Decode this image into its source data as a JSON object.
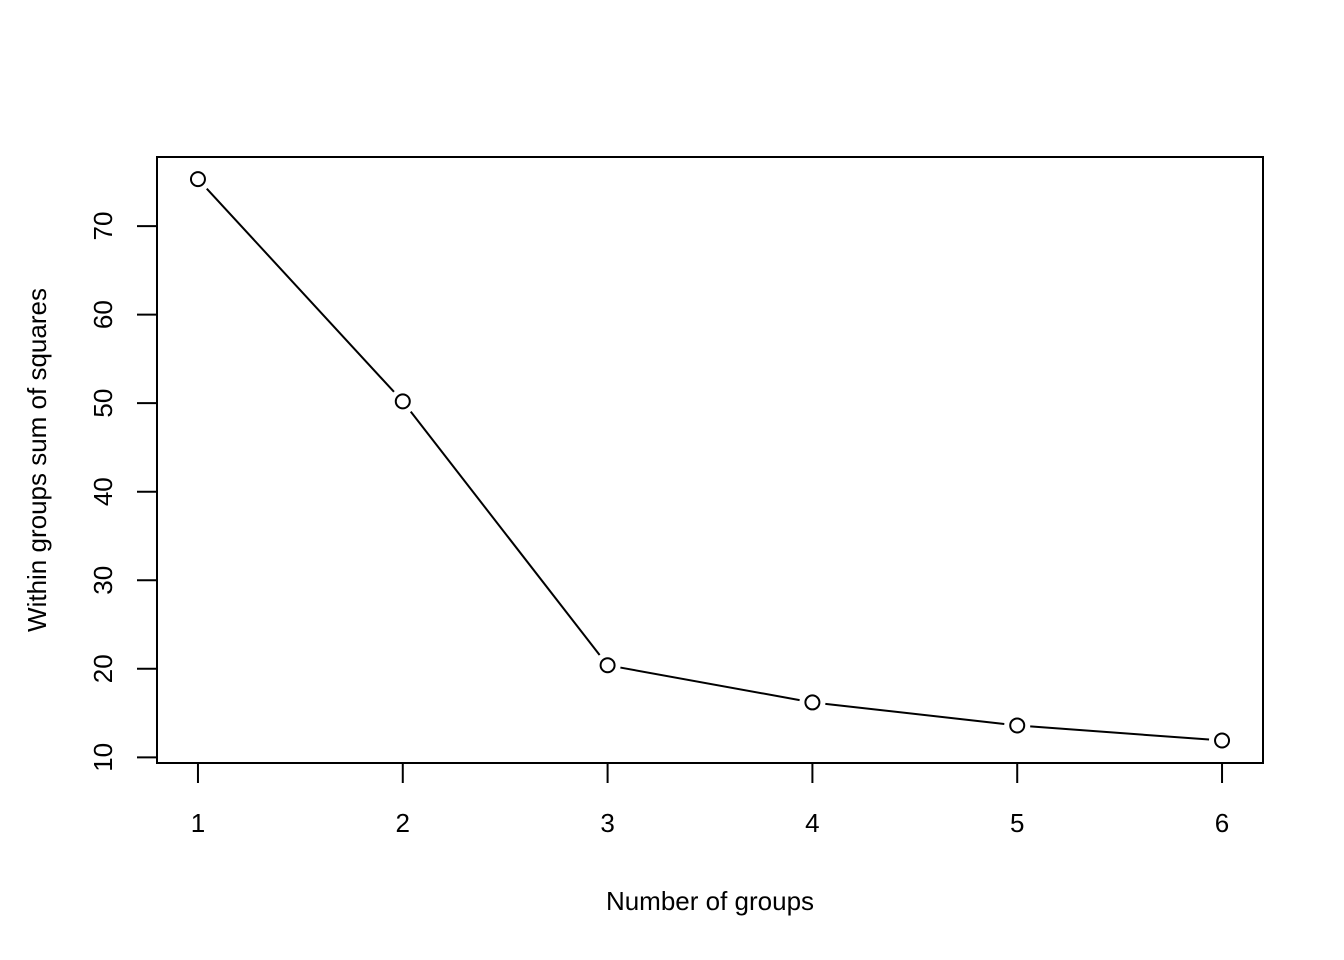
{
  "chart_data": {
    "type": "line",
    "title": "",
    "xlabel": "Number of groups",
    "ylabel": "Within groups sum of squares",
    "x": [
      1,
      2,
      3,
      4,
      5,
      6
    ],
    "values": [
      75.3,
      50.2,
      20.4,
      16.2,
      13.6,
      11.9
    ],
    "xlim": [
      0.8,
      6.2
    ],
    "ylim": [
      9.36,
      77.8
    ],
    "xticks": [
      "1",
      "2",
      "3",
      "4",
      "5",
      "6"
    ],
    "yticks": [
      "10",
      "20",
      "30",
      "40",
      "50",
      "60",
      "70"
    ],
    "grid": false,
    "marker": "open-circle",
    "line_style": "points-and-lines",
    "color": "#000000"
  }
}
